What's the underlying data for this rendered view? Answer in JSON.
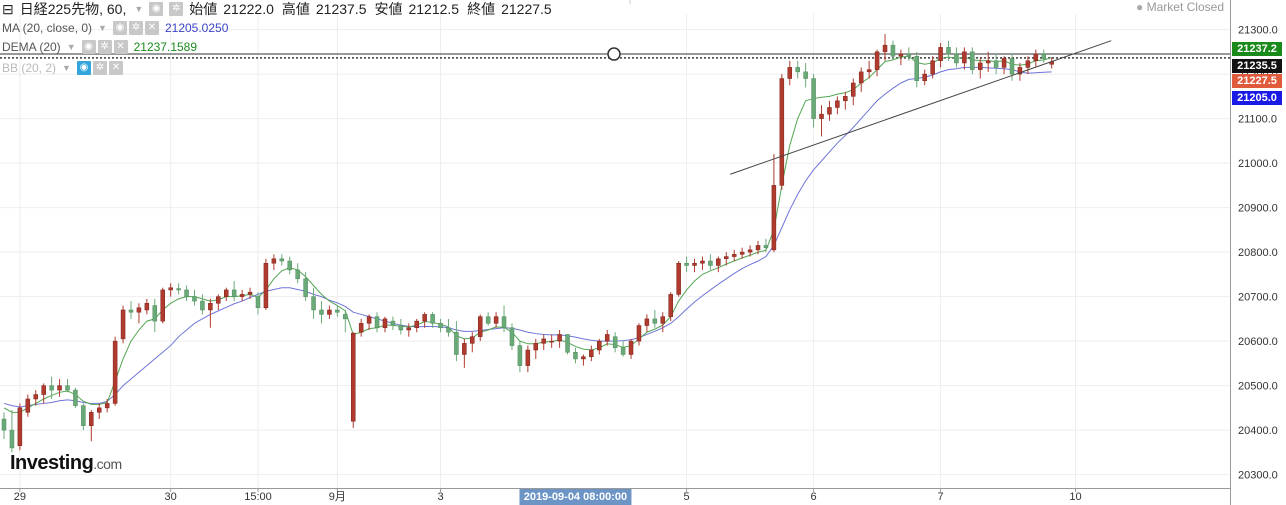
{
  "header": {
    "symbol": "日経225先物, 60,",
    "open_label": "始値",
    "open": "21222.0",
    "high_label": "高値",
    "high": "21237.5",
    "low_label": "安値",
    "low": "21212.5",
    "close_label": "終値",
    "close": "21227.5"
  },
  "indicators": [
    {
      "name": "MA (20, close, 0)",
      "value": "21205.0250",
      "color": "#3b44c8"
    },
    {
      "name": "DEMA (20)",
      "value": "21237.1589",
      "color": "#1b8a1b"
    },
    {
      "name": "BB (20, 2)",
      "value": ""
    }
  ],
  "market_status": "Market Closed",
  "logo": {
    "main": "Investing",
    "suffix": ".com"
  },
  "price_tags": [
    {
      "label": "21237.2",
      "color": "#1a8a1a"
    },
    {
      "label": "21235.5",
      "color": "#111111"
    },
    {
      "label": "21227.5",
      "color": "#e05a3c"
    },
    {
      "label": "21205.0",
      "color": "#1a1ae6"
    }
  ],
  "crosshair_date": "2019-09-04 08:00:00",
  "colors": {
    "up": "#b13a2e",
    "down": "#6aaa78",
    "ma": "#6f75d8",
    "dema": "#53a553",
    "grid": "#eeeeee"
  },
  "chart_data": {
    "type": "candlestick",
    "y_ticks": [
      20300,
      20400,
      20500,
      20600,
      20700,
      20800,
      20900,
      21000,
      21100,
      21200,
      21300
    ],
    "y_tick_labels": [
      "20300.0",
      "20400.0",
      "20500.0",
      "20600.0",
      "20700.0",
      "20800.0",
      "20900.0",
      "21000.0",
      "21100.0",
      "21200.0",
      "21300.0"
    ],
    "ylim": [
      20270,
      21335
    ],
    "x_labels": [
      {
        "label": "29",
        "index": 2
      },
      {
        "label": "30",
        "index": 21
      },
      {
        "label": "15:00",
        "index": 32
      },
      {
        "label": "9月",
        "index": 42
      },
      {
        "label": "3",
        "index": 55
      },
      {
        "label": "5",
        "index": 86
      },
      {
        "label": "6",
        "index": 102
      },
      {
        "label": "7",
        "index": 118
      },
      {
        "label": "10",
        "index": 135
      }
    ],
    "n_slots": 150,
    "candles": [
      [
        20425,
        20440,
        20380,
        20400
      ],
      [
        20400,
        20445,
        20350,
        20360
      ],
      [
        20365,
        20460,
        20355,
        20450
      ],
      [
        20440,
        20480,
        20430,
        20470
      ],
      [
        20470,
        20490,
        20455,
        20480
      ],
      [
        20480,
        20505,
        20460,
        20500
      ],
      [
        20500,
        20520,
        20470,
        20490
      ],
      [
        20490,
        20515,
        20475,
        20500
      ],
      [
        20500,
        20515,
        20485,
        20490
      ],
      [
        20490,
        20495,
        20450,
        20455
      ],
      [
        20455,
        20460,
        20400,
        20410
      ],
      [
        20410,
        20445,
        20375,
        20440
      ],
      [
        20440,
        20460,
        20425,
        20450
      ],
      [
        20450,
        20470,
        20440,
        20460
      ],
      [
        20460,
        20610,
        20455,
        20600
      ],
      [
        20605,
        20680,
        20595,
        20670
      ],
      [
        20670,
        20690,
        20650,
        20665
      ],
      [
        20665,
        20685,
        20640,
        20675
      ],
      [
        20670,
        20695,
        20660,
        20685
      ],
      [
        20680,
        20695,
        20620,
        20645
      ],
      [
        20645,
        20720,
        20640,
        20715
      ],
      [
        20715,
        20730,
        20700,
        20720
      ],
      [
        20718,
        20730,
        20705,
        20715
      ],
      [
        20715,
        20725,
        20690,
        20700
      ],
      [
        20700,
        20715,
        20680,
        20690
      ],
      [
        20690,
        20705,
        20660,
        20670
      ],
      [
        20670,
        20695,
        20630,
        20685
      ],
      [
        20685,
        20705,
        20670,
        20700
      ],
      [
        20700,
        20720,
        20690,
        20715
      ],
      [
        20715,
        20735,
        20690,
        20700
      ],
      [
        20700,
        20715,
        20690,
        20705
      ],
      [
        20705,
        20720,
        20695,
        20710
      ],
      [
        20700,
        20710,
        20660,
        20675
      ],
      [
        20675,
        20785,
        20670,
        20775
      ],
      [
        20775,
        20795,
        20760,
        20785
      ],
      [
        20785,
        20795,
        20770,
        20780
      ],
      [
        20780,
        20790,
        20750,
        20760
      ],
      [
        20760,
        20775,
        20730,
        20740
      ],
      [
        20740,
        20755,
        20690,
        20700
      ],
      [
        20700,
        20720,
        20650,
        20670
      ],
      [
        20670,
        20690,
        20640,
        20660
      ],
      [
        20660,
        20680,
        20650,
        20670
      ],
      [
        20670,
        20680,
        20655,
        20665
      ],
      [
        20660,
        20670,
        20620,
        20650
      ],
      [
        20420,
        20620,
        20405,
        20618
      ],
      [
        20620,
        20650,
        20610,
        20640
      ],
      [
        20640,
        20660,
        20625,
        20655
      ],
      [
        20655,
        20665,
        20620,
        20630
      ],
      [
        20630,
        20655,
        20620,
        20650
      ],
      [
        20645,
        20655,
        20625,
        20635
      ],
      [
        20635,
        20650,
        20615,
        20625
      ],
      [
        20625,
        20640,
        20610,
        20630
      ],
      [
        20630,
        20650,
        20620,
        20645
      ],
      [
        20645,
        20665,
        20630,
        20660
      ],
      [
        20660,
        20665,
        20630,
        20640
      ],
      [
        20640,
        20650,
        20620,
        20630
      ],
      [
        20630,
        20650,
        20610,
        20620
      ],
      [
        20620,
        20645,
        20555,
        20570
      ],
      [
        20570,
        20605,
        20540,
        20595
      ],
      [
        20595,
        20620,
        20575,
        20610
      ],
      [
        20610,
        20660,
        20600,
        20655
      ],
      [
        20655,
        20665,
        20635,
        20640
      ],
      [
        20640,
        20665,
        20630,
        20655
      ],
      [
        20655,
        20680,
        20620,
        20630
      ],
      [
        20630,
        20640,
        20580,
        20590
      ],
      [
        20590,
        20600,
        20530,
        20545
      ],
      [
        20545,
        20590,
        20530,
        20580
      ],
      [
        20580,
        20605,
        20560,
        20595
      ],
      [
        20595,
        20615,
        20580,
        20605
      ],
      [
        20600,
        20615,
        20585,
        20600
      ],
      [
        20600,
        20625,
        20585,
        20615
      ],
      [
        20615,
        20610,
        20570,
        20575
      ],
      [
        20575,
        20585,
        20550,
        20560
      ],
      [
        20560,
        20570,
        20545,
        20565
      ],
      [
        20565,
        20590,
        20555,
        20580
      ],
      [
        20580,
        20605,
        20570,
        20600
      ],
      [
        20600,
        20625,
        20590,
        20615
      ],
      [
        20610,
        20620,
        20575,
        20585
      ],
      [
        20585,
        20600,
        20565,
        20570
      ],
      [
        20570,
        20605,
        20560,
        20600
      ],
      [
        20600,
        20640,
        20590,
        20635
      ],
      [
        20635,
        20660,
        20620,
        20650
      ],
      [
        20650,
        20670,
        20630,
        20640
      ],
      [
        20640,
        20665,
        20620,
        20655
      ],
      [
        20655,
        20710,
        20645,
        20705
      ],
      [
        20705,
        20780,
        20700,
        20775
      ],
      [
        20775,
        20790,
        20755,
        20770
      ],
      [
        20770,
        20785,
        20755,
        20775
      ],
      [
        20775,
        20790,
        20760,
        20780
      ],
      [
        20780,
        20795,
        20760,
        20770
      ],
      [
        20770,
        20790,
        20755,
        20785
      ],
      [
        20785,
        20800,
        20770,
        20790
      ],
      [
        20790,
        20805,
        20780,
        20795
      ],
      [
        20795,
        20810,
        20785,
        20800
      ],
      [
        20800,
        20815,
        20790,
        20805
      ],
      [
        20805,
        20825,
        20795,
        20815
      ],
      [
        20815,
        20830,
        20800,
        20810
      ],
      [
        20805,
        21020,
        20800,
        20950
      ],
      [
        20950,
        21200,
        20940,
        21190
      ],
      [
        21190,
        21230,
        21175,
        21215
      ],
      [
        21215,
        21230,
        21190,
        21205
      ],
      [
        21205,
        21225,
        21170,
        21190
      ],
      [
        21190,
        21200,
        21080,
        21100
      ],
      [
        21100,
        21130,
        21060,
        21110
      ],
      [
        21110,
        21140,
        21095,
        21125
      ],
      [
        21125,
        21150,
        21110,
        21140
      ],
      [
        21140,
        21160,
        21120,
        21150
      ],
      [
        21150,
        21190,
        21130,
        21180
      ],
      [
        21180,
        21215,
        21160,
        21205
      ],
      [
        21205,
        21230,
        21190,
        21210
      ],
      [
        21210,
        21255,
        21195,
        21250
      ],
      [
        21250,
        21290,
        21230,
        21265
      ],
      [
        21265,
        21275,
        21235,
        21240
      ],
      [
        21240,
        21255,
        21220,
        21245
      ],
      [
        21245,
        21260,
        21230,
        21240
      ],
      [
        21240,
        21250,
        21170,
        21185
      ],
      [
        21185,
        21210,
        21175,
        21200
      ],
      [
        21200,
        21240,
        21190,
        21230
      ],
      [
        21230,
        21270,
        21215,
        21260
      ],
      [
        21260,
        21275,
        21230,
        21245
      ],
      [
        21245,
        21260,
        21215,
        21225
      ],
      [
        21225,
        21260,
        21210,
        21250
      ],
      [
        21250,
        21260,
        21200,
        21210
      ],
      [
        21210,
        21235,
        21190,
        21225
      ],
      [
        21225,
        21250,
        21205,
        21230
      ],
      [
        21230,
        21245,
        21200,
        21215
      ],
      [
        21215,
        21240,
        21200,
        21235
      ],
      [
        21235,
        21245,
        21185,
        21200
      ],
      [
        21200,
        21225,
        21185,
        21215
      ],
      [
        21215,
        21240,
        21200,
        21230
      ],
      [
        21230,
        21255,
        21215,
        21245
      ],
      [
        21245,
        21255,
        21225,
        21235
      ],
      [
        21222,
        21237.5,
        21212.5,
        21227.5
      ]
    ],
    "dema": [
      20450,
      20440,
      20440,
      20450,
      20460,
      20470,
      20478,
      20485,
      20488,
      20480,
      20465,
      20458,
      20458,
      20462,
      20510,
      20560,
      20600,
      20625,
      20645,
      20650,
      20670,
      20685,
      20695,
      20700,
      20700,
      20695,
      20690,
      20693,
      20700,
      20700,
      20702,
      20705,
      20698,
      20715,
      20740,
      20758,
      20765,
      20760,
      20745,
      20725,
      20705,
      20690,
      20680,
      20668,
      20615,
      20620,
      20628,
      20630,
      20636,
      20636,
      20633,
      20632,
      20636,
      20644,
      20642,
      20638,
      20632,
      20612,
      20605,
      20607,
      20620,
      20625,
      20632,
      20631,
      20620,
      20600,
      20594,
      20594,
      20598,
      20599,
      20603,
      20597,
      20588,
      20582,
      20580,
      20585,
      20594,
      20592,
      20586,
      20590,
      20605,
      20620,
      20627,
      20636,
      20655,
      20690,
      20715,
      20735,
      20750,
      20758,
      20765,
      20773,
      20780,
      20787,
      20793,
      20800,
      20804,
      20850,
      20950,
      21040,
      21100,
      21140,
      21145,
      21148,
      21150,
      21155,
      21158,
      21165,
      21180,
      21192,
      21210,
      21228,
      21232,
      21238,
      21240,
      21226,
      21222,
      21225,
      21235,
      21238,
      21235,
      21238,
      21232,
      21230,
      21230,
      21228,
      21230,
      21222,
      21220,
      21223,
      21230,
      21232,
      21237
    ],
    "ma": [
      20460,
      20455,
      20452,
      20455,
      20458,
      20460,
      20462,
      20466,
      20468,
      20466,
      20462,
      20460,
      20460,
      20465,
      20480,
      20500,
      20515,
      20530,
      20545,
      20560,
      20575,
      20590,
      20610,
      20625,
      20640,
      20650,
      20660,
      20668,
      20676,
      20684,
      20690,
      20698,
      20705,
      20712,
      20716,
      20720,
      20720,
      20716,
      20712,
      20705,
      20700,
      20692,
      20686,
      20678,
      20665,
      20660,
      20655,
      20650,
      20645,
      20640,
      20636,
      20633,
      20632,
      20633,
      20633,
      20632,
      20630,
      20625,
      20622,
      20622,
      20624,
      20626,
      20628,
      20630,
      20629,
      20625,
      20620,
      20617,
      20615,
      20614,
      20614,
      20612,
      20609,
      20605,
      20602,
      20600,
      20600,
      20600,
      20601,
      20603,
      20608,
      20615,
      20622,
      20630,
      20640,
      20655,
      20672,
      20688,
      20702,
      20715,
      20728,
      20740,
      20752,
      20763,
      20772,
      20780,
      20790,
      20815,
      20855,
      20895,
      20930,
      20960,
      20985,
      21005,
      21025,
      21045,
      21062,
      21080,
      21100,
      21120,
      21140,
      21155,
      21168,
      21180,
      21188,
      21190,
      21193,
      21198,
      21205,
      21210,
      21212,
      21215,
      21215,
      21215,
      21214,
      21213,
      21212,
      21210,
      21205,
      21202,
      21203,
      21204,
      21205
    ],
    "trendline": {
      "from": {
        "index": 91.5,
        "price": 20975
      },
      "to": {
        "index": 139.5,
        "price": 21275
      }
    },
    "h_lines": [
      21245,
      21237.2,
      21235.5
    ]
  }
}
